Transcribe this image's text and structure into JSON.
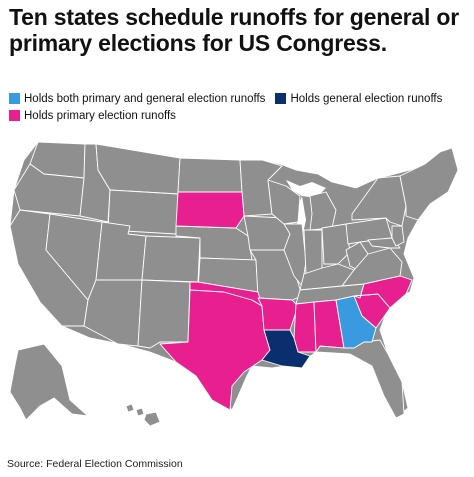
{
  "title": "Ten states schedule runoffs for general or primary elections for US Congress.",
  "legend": {
    "both": {
      "label": "Holds both primary and general election runoffs",
      "color": "#3a9ae0"
    },
    "general": {
      "label": "Holds general election runoffs",
      "color": "#0b2f6e"
    },
    "primary": {
      "label": "Holds primary election runoffs",
      "color": "#e8208f"
    }
  },
  "colors": {
    "other": "#8f8f8f",
    "background": "#ffffff"
  },
  "map_data": {
    "type": "choropleth",
    "categories": {
      "both": [
        "Georgia"
      ],
      "general": [
        "Louisiana"
      ],
      "primary": [
        "South Dakota",
        "Texas",
        "Oklahoma",
        "Arkansas",
        "Mississippi",
        "Alabama",
        "South Carolina",
        "North Carolina"
      ]
    }
  },
  "source": "Source: Federal Election Commission"
}
